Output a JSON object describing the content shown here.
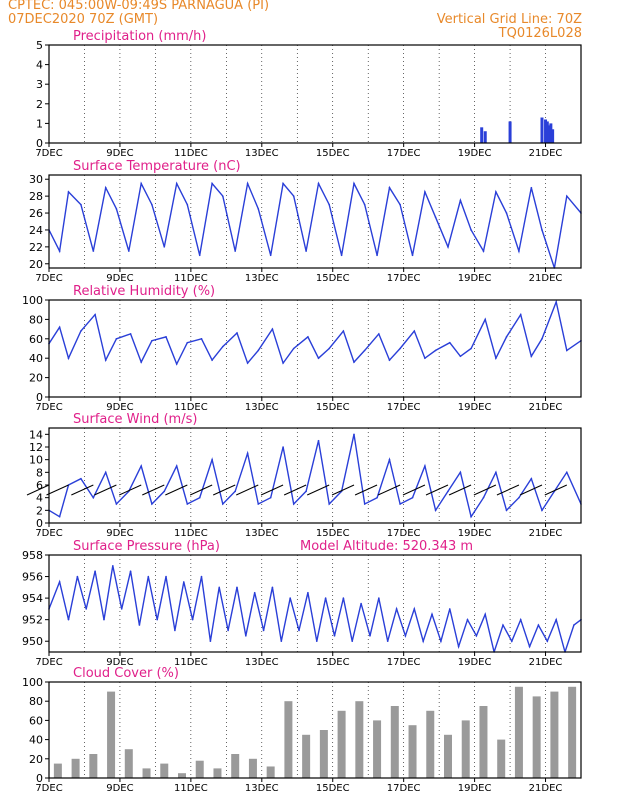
{
  "header": {
    "line1": "CPTEC:   045:00W-09:49S   PARNAGUA (PI)",
    "line2": "07DEC2020 70Z (GMT)",
    "grid_note": "Vertical Grid Line: 70Z",
    "code": "TQ0126L028"
  },
  "colors": {
    "header": "#e8892a",
    "title": "#e0208a",
    "line": "#2a3fd8",
    "cloud": "#9a9a9a",
    "wind_barb": "#000000"
  },
  "chart_data": [
    {
      "id": "precip",
      "type": "bar",
      "title": "Precipitation (mm/h)",
      "ylim": [
        0,
        5
      ],
      "yticks": [
        0,
        1,
        2,
        3,
        4,
        5
      ],
      "xticks": [
        "7DEC",
        "9DEC",
        "11DEC",
        "13DEC",
        "15DEC",
        "17DEC",
        "19DEC",
        "21DEC"
      ],
      "xlim_days": [
        7,
        22
      ],
      "series": [
        {
          "x": [
            19.2,
            19.3,
            20.0,
            20.9,
            21.0,
            21.05,
            21.1,
            21.15,
            21.2
          ],
          "values": [
            0.8,
            0.6,
            1.1,
            1.3,
            1.2,
            1.1,
            0.9,
            1.0,
            0.7
          ]
        }
      ]
    },
    {
      "id": "temp",
      "type": "line",
      "title": "Surface Temperature (nC)",
      "ylim": [
        19.5,
        30.5
      ],
      "yticks": [
        20,
        22,
        24,
        26,
        28,
        30
      ],
      "xticks": [
        "7DEC",
        "9DEC",
        "11DEC",
        "13DEC",
        "15DEC",
        "17DEC",
        "19DEC",
        "21DEC"
      ],
      "xlim_days": [
        7,
        22
      ],
      "series": [
        {
          "x": [
            7.0,
            7.3,
            7.55,
            7.9,
            8.25,
            8.6,
            8.9,
            9.25,
            9.6,
            9.9,
            10.25,
            10.6,
            10.9,
            11.25,
            11.6,
            11.9,
            12.25,
            12.6,
            12.9,
            13.25,
            13.6,
            13.9,
            14.25,
            14.6,
            14.9,
            15.25,
            15.6,
            15.9,
            16.25,
            16.6,
            16.9,
            17.25,
            17.6,
            17.9,
            18.25,
            18.6,
            18.9,
            19.25,
            19.6,
            19.9,
            20.25,
            20.6,
            20.9,
            21.25,
            21.6,
            22.0
          ],
          "values": [
            24,
            21.5,
            28.5,
            27,
            21.5,
            29,
            26.5,
            21.5,
            29.5,
            27,
            22,
            29.5,
            27,
            21,
            29.5,
            28,
            21.5,
            29.5,
            26.5,
            21,
            29.5,
            28,
            21.5,
            29.5,
            27,
            21,
            29.5,
            27,
            21,
            29,
            27,
            21,
            28.5,
            25.5,
            22,
            27.5,
            24,
            21.5,
            28.5,
            26,
            21.5,
            29,
            24,
            19.5,
            28,
            26
          ]
        }
      ]
    },
    {
      "id": "rh",
      "type": "line",
      "title": "Relative Humidity (%)",
      "ylim": [
        0,
        100
      ],
      "yticks": [
        0,
        20,
        40,
        60,
        80,
        100
      ],
      "xticks": [
        "7DEC",
        "9DEC",
        "11DEC",
        "13DEC",
        "15DEC",
        "17DEC",
        "19DEC",
        "21DEC"
      ],
      "xlim_days": [
        7,
        22
      ],
      "series": [
        {
          "x": [
            7.0,
            7.3,
            7.55,
            7.9,
            8.3,
            8.6,
            8.9,
            9.3,
            9.6,
            9.9,
            10.3,
            10.6,
            10.9,
            11.3,
            11.6,
            11.9,
            12.3,
            12.6,
            12.9,
            13.3,
            13.6,
            13.9,
            14.3,
            14.6,
            14.9,
            15.3,
            15.6,
            15.9,
            16.3,
            16.6,
            16.9,
            17.3,
            17.6,
            17.9,
            18.3,
            18.6,
            18.9,
            19.3,
            19.6,
            19.9,
            20.3,
            20.6,
            20.9,
            21.3,
            21.6,
            22.0
          ],
          "values": [
            55,
            72,
            40,
            68,
            85,
            38,
            60,
            65,
            36,
            58,
            62,
            34,
            56,
            60,
            38,
            52,
            66,
            35,
            48,
            70,
            35,
            50,
            62,
            40,
            50,
            68,
            36,
            48,
            65,
            38,
            50,
            68,
            40,
            48,
            56,
            42,
            50,
            80,
            40,
            62,
            85,
            42,
            60,
            98,
            48,
            58
          ]
        }
      ]
    },
    {
      "id": "wind",
      "type": "line",
      "title": "Surface Wind (m/s)",
      "ylim": [
        0,
        15
      ],
      "yticks": [
        0,
        2,
        4,
        6,
        8,
        10,
        12,
        14
      ],
      "xticks": [
        "7DEC",
        "9DEC",
        "11DEC",
        "13DEC",
        "15DEC",
        "17DEC",
        "19DEC",
        "21DEC"
      ],
      "xlim_days": [
        7,
        22
      ],
      "series": [
        {
          "x": [
            7.0,
            7.3,
            7.55,
            7.9,
            8.25,
            8.6,
            8.9,
            9.25,
            9.6,
            9.9,
            10.25,
            10.6,
            10.9,
            11.25,
            11.6,
            11.9,
            12.25,
            12.6,
            12.9,
            13.25,
            13.6,
            13.9,
            14.25,
            14.6,
            14.9,
            15.25,
            15.6,
            15.9,
            16.25,
            16.6,
            16.9,
            17.25,
            17.6,
            17.9,
            18.25,
            18.6,
            18.9,
            19.25,
            19.6,
            19.9,
            20.25,
            20.6,
            20.9,
            21.25,
            21.6,
            22.0
          ],
          "values": [
            2,
            1,
            6,
            7,
            4,
            8,
            3,
            5,
            9,
            3,
            5,
            9,
            3,
            4,
            10,
            3,
            5,
            11,
            3,
            4,
            12,
            3,
            5,
            13,
            3,
            5,
            14,
            3,
            4,
            10,
            3,
            4,
            9,
            2,
            5,
            8,
            1,
            4,
            8,
            2,
            4,
            7,
            2,
            5,
            8,
            3
          ]
        }
      ]
    },
    {
      "id": "pressure",
      "type": "line",
      "title": "Surface Pressure (hPa)",
      "annotation": "Model Altitude: 520.343 m",
      "ylim": [
        949,
        958
      ],
      "yticks": [
        950,
        952,
        954,
        956,
        958
      ],
      "xticks": [
        "7DEC",
        "9DEC",
        "11DEC",
        "13DEC",
        "15DEC",
        "17DEC",
        "19DEC",
        "21DEC"
      ],
      "xlim_days": [
        7,
        22
      ],
      "series": [
        {
          "x": [
            7.0,
            7.3,
            7.55,
            7.8,
            8.05,
            8.3,
            8.55,
            8.8,
            9.05,
            9.3,
            9.55,
            9.8,
            10.05,
            10.3,
            10.55,
            10.8,
            11.05,
            11.3,
            11.55,
            11.8,
            12.05,
            12.3,
            12.55,
            12.8,
            13.05,
            13.3,
            13.55,
            13.8,
            14.05,
            14.3,
            14.55,
            14.8,
            15.05,
            15.3,
            15.55,
            15.8,
            16.05,
            16.3,
            16.55,
            16.8,
            17.05,
            17.3,
            17.55,
            17.8,
            18.05,
            18.3,
            18.55,
            18.8,
            19.05,
            19.3,
            19.55,
            19.8,
            20.05,
            20.3,
            20.55,
            20.8,
            21.05,
            21.3,
            21.55,
            21.8,
            22.0
          ],
          "values": [
            953,
            955.5,
            952,
            956,
            953,
            956.5,
            952,
            957,
            953,
            956.5,
            951.5,
            956,
            952,
            956,
            951,
            955.5,
            952,
            956,
            950,
            955,
            951,
            955,
            950.5,
            954.5,
            951,
            955,
            950,
            954,
            951,
            954.5,
            950,
            954,
            950.5,
            954,
            950,
            953.5,
            950.5,
            954,
            950,
            953,
            950.5,
            953,
            950,
            952.5,
            950,
            953,
            949.5,
            952,
            950.5,
            952.5,
            949,
            951.5,
            950,
            952,
            949.5,
            951.5,
            950,
            952,
            949,
            951.5,
            952
          ]
        }
      ]
    },
    {
      "id": "cloud",
      "type": "bar",
      "title": "Cloud Cover (%)",
      "ylim": [
        0,
        100
      ],
      "yticks": [
        0,
        20,
        40,
        60,
        80,
        100
      ],
      "xticks": [
        "7DEC",
        "9DEC",
        "11DEC",
        "13DEC",
        "15DEC",
        "17DEC",
        "19DEC",
        "21DEC"
      ],
      "xlim_days": [
        7,
        22
      ],
      "series": [
        {
          "x": [
            7.25,
            7.75,
            8.25,
            8.75,
            9.25,
            9.75,
            10.25,
            10.75,
            11.25,
            11.75,
            12.25,
            12.75,
            13.25,
            13.75,
            14.25,
            14.75,
            15.25,
            15.75,
            16.25,
            16.75,
            17.25,
            17.75,
            18.25,
            18.75,
            19.25,
            19.75,
            20.25,
            20.75,
            21.25,
            21.75
          ],
          "values": [
            15,
            20,
            25,
            90,
            30,
            10,
            15,
            5,
            18,
            10,
            25,
            20,
            12,
            80,
            45,
            50,
            70,
            80,
            60,
            75,
            55,
            70,
            45,
            60,
            75,
            40,
            95,
            85,
            90,
            95
          ]
        }
      ]
    }
  ]
}
